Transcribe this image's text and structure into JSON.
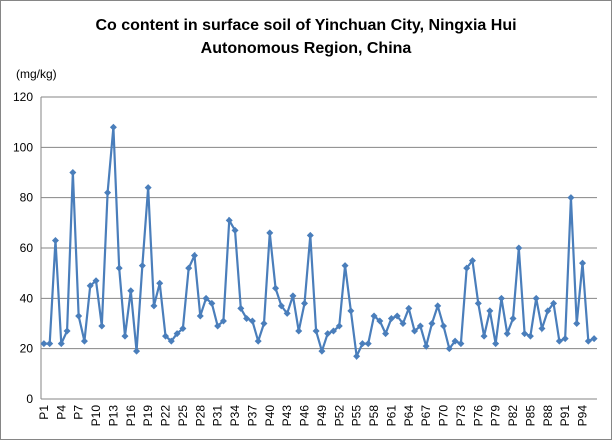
{
  "chart_data": {
    "type": "line",
    "title": [
      "Co content in surface soil of Yinchuan City, Ningxia Hui",
      "Autonomous Region, China"
    ],
    "y_label": "(mg/kg)",
    "categories": [
      "P1",
      null,
      null,
      "P4",
      null,
      null,
      "P7",
      null,
      null,
      "P10",
      null,
      null,
      "P13",
      null,
      null,
      "P16",
      null,
      null,
      "P19",
      null,
      null,
      "P22",
      null,
      null,
      "P25",
      null,
      null,
      "P28",
      null,
      null,
      "P31",
      null,
      null,
      "P34",
      null,
      null,
      "P37",
      null,
      null,
      "P40",
      null,
      null,
      "P43",
      null,
      null,
      "P46",
      null,
      null,
      "P49",
      null,
      null,
      "P52",
      null,
      null,
      "P55",
      null,
      null,
      "P58",
      null,
      null,
      "P61",
      null,
      null,
      "P64",
      null,
      null,
      "P67",
      null,
      null,
      "P70",
      null,
      null,
      "P73",
      null,
      null,
      "P76",
      null,
      null,
      "P79",
      null,
      null,
      "P82",
      null,
      null,
      "P85",
      null,
      null,
      "P88",
      null,
      null,
      "P91",
      null,
      null,
      "P94",
      null,
      null
    ],
    "values": [
      22,
      22,
      63,
      22,
      27,
      90,
      33,
      23,
      45,
      47,
      29,
      82,
      108,
      52,
      25,
      43,
      19,
      53,
      84,
      37,
      46,
      25,
      23,
      26,
      28,
      52,
      57,
      33,
      40,
      38,
      29,
      31,
      71,
      67,
      36,
      32,
      31,
      23,
      30,
      66,
      44,
      37,
      34,
      41,
      27,
      38,
      65,
      27,
      19,
      26,
      27,
      29,
      53,
      35,
      17,
      22,
      22,
      33,
      31,
      26,
      32,
      33,
      30,
      36,
      27,
      29,
      21,
      30,
      37,
      29,
      20,
      23,
      22,
      52,
      55,
      38,
      25,
      35,
      22,
      40,
      26,
      32,
      60,
      26,
      25,
      40,
      28,
      35,
      38,
      23,
      24,
      80,
      30,
      54,
      23,
      24
    ],
    "color": "#4a7ebb",
    "ylim": [
      0,
      120
    ],
    "yticks": [
      0,
      20,
      40,
      60,
      80,
      100,
      120
    ],
    "grid": true
  }
}
